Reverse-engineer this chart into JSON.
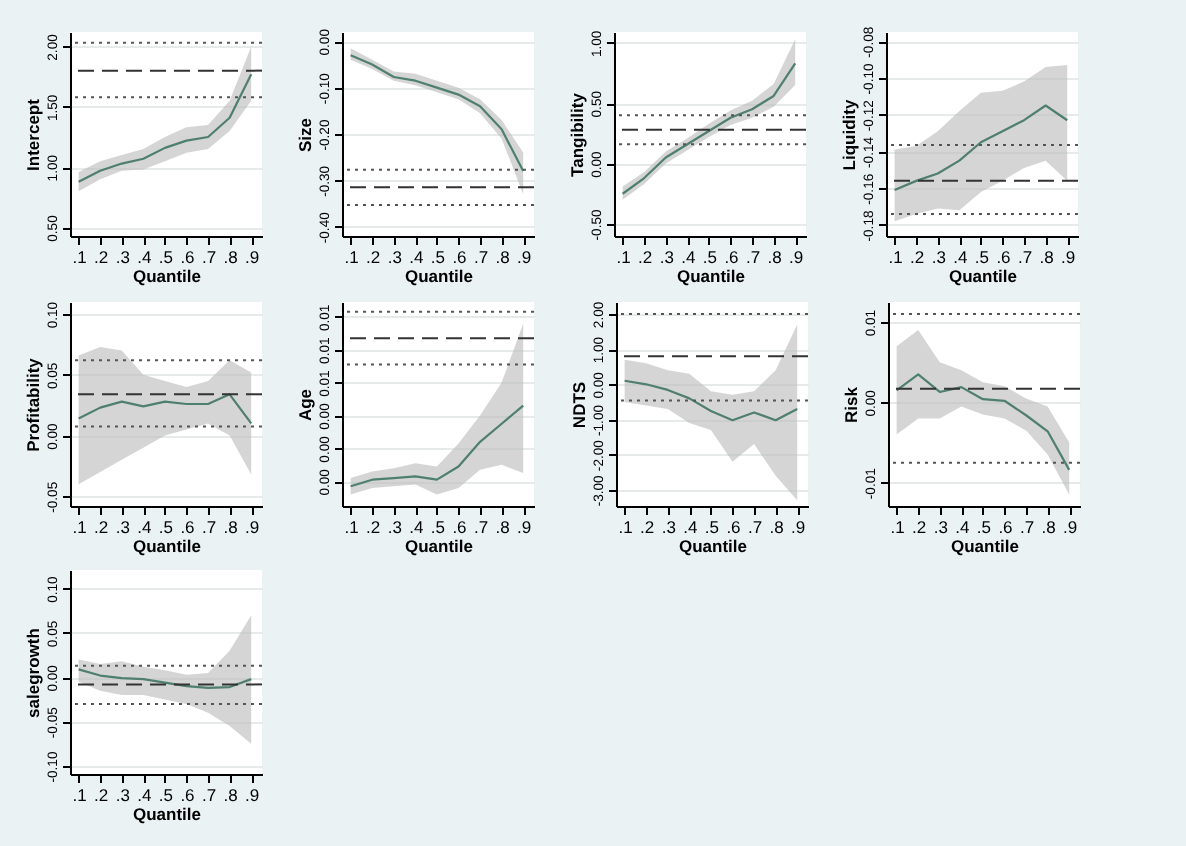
{
  "chart_data": [
    {
      "type": "line",
      "ylabel": "Intercept",
      "xlabel": "Quantile",
      "x": [
        0.1,
        0.2,
        0.3,
        0.4,
        0.5,
        0.6,
        0.7,
        0.8,
        0.9
      ],
      "xlim": [
        0.06,
        0.95
      ],
      "xticks": [
        {
          "value": 0.1,
          "label": ".1"
        },
        {
          "value": 0.2,
          "label": ".2"
        },
        {
          "value": 0.3,
          "label": ".3"
        },
        {
          "value": 0.4,
          "label": ".4"
        },
        {
          "value": 0.5,
          "label": ".5"
        },
        {
          "value": 0.6,
          "label": ".6"
        },
        {
          "value": 0.7,
          "label": ".7"
        },
        {
          "value": 0.8,
          "label": ".8"
        },
        {
          "value": 0.9,
          "label": ".9"
        }
      ],
      "ylim": [
        0.43,
        2.12
      ],
      "yticks": [
        {
          "value": 0.5,
          "label": "0.50"
        },
        {
          "value": 1,
          "label": "1.00"
        },
        {
          "value": 1.5,
          "label": "1.50"
        },
        {
          "value": 2,
          "label": "2.00"
        }
      ],
      "grid": "y",
      "series": [
        {
          "color": "#4f7f6e",
          "values": [
            0.88,
            0.97,
            1.03,
            1.07,
            1.16,
            1.22,
            1.25,
            1.41,
            1.77
          ],
          "lower": [
            0.8,
            0.9,
            0.97,
            0.98,
            1.05,
            1.12,
            1.15,
            1.3,
            1.55
          ],
          "upper": [
            0.96,
            1.05,
            1.1,
            1.15,
            1.25,
            1.33,
            1.35,
            1.55,
            2.0
          ]
        }
      ],
      "ref_lines": [
        {
          "axis": "y",
          "value": 2.03,
          "line_style": "dotted",
          "color": "#555555"
        },
        {
          "axis": "y",
          "value": 1.8,
          "line_style": "dashed",
          "color": "#333333"
        },
        {
          "axis": "y",
          "value": 1.58,
          "line_style": "dotted",
          "color": "#555555"
        }
      ]
    },
    {
      "type": "line",
      "ylabel": "Size",
      "xlabel": "Quantile",
      "x": [
        0.1,
        0.2,
        0.3,
        0.4,
        0.5,
        0.6,
        0.7,
        0.8,
        0.9
      ],
      "xlim": [
        0.06,
        0.95
      ],
      "xticks": [
        {
          "value": 0.1,
          "label": ".1"
        },
        {
          "value": 0.2,
          "label": ".2"
        },
        {
          "value": 0.3,
          "label": ".3"
        },
        {
          "value": 0.4,
          "label": ".4"
        },
        {
          "value": 0.5,
          "label": ".5"
        },
        {
          "value": 0.6,
          "label": ".6"
        },
        {
          "value": 0.7,
          "label": ".7"
        },
        {
          "value": 0.8,
          "label": ".8"
        },
        {
          "value": 0.9,
          "label": ".9"
        }
      ],
      "ylim": [
        -0.42,
        0.02
      ],
      "yticks": [
        {
          "value": -0.4,
          "label": "-0.40"
        },
        {
          "value": -0.3,
          "label": "-0.30"
        },
        {
          "value": -0.2,
          "label": "-0.20"
        },
        {
          "value": -0.1,
          "label": "-0.10"
        },
        {
          "value": 0,
          "label": "0.00"
        }
      ],
      "grid": "y",
      "series": [
        {
          "color": "#4f7f6e",
          "values": [
            -0.03,
            -0.05,
            -0.077,
            -0.085,
            -0.1,
            -0.115,
            -0.14,
            -0.19,
            -0.28
          ],
          "lower": [
            -0.04,
            -0.06,
            -0.085,
            -0.095,
            -0.11,
            -0.125,
            -0.155,
            -0.21,
            -0.33
          ],
          "upper": [
            -0.015,
            -0.04,
            -0.065,
            -0.07,
            -0.085,
            -0.1,
            -0.125,
            -0.17,
            -0.24
          ]
        }
      ],
      "ref_lines": [
        {
          "axis": "y",
          "value": -0.277,
          "line_style": "dotted",
          "color": "#555555"
        },
        {
          "axis": "y",
          "value": -0.315,
          "line_style": "dashed",
          "color": "#333333"
        },
        {
          "axis": "y",
          "value": -0.353,
          "line_style": "dotted",
          "color": "#555555"
        }
      ]
    },
    {
      "type": "line",
      "ylabel": "Tangibility",
      "xlabel": "Quantile",
      "x": [
        0.1,
        0.2,
        0.3,
        0.4,
        0.5,
        0.6,
        0.7,
        0.8,
        0.9
      ],
      "xlim": [
        0.06,
        0.95
      ],
      "xticks": [
        {
          "value": 0.1,
          "label": ".1"
        },
        {
          "value": 0.2,
          "label": ".2"
        },
        {
          "value": 0.3,
          "label": ".3"
        },
        {
          "value": 0.4,
          "label": ".4"
        },
        {
          "value": 0.5,
          "label": ".5"
        },
        {
          "value": 0.6,
          "label": ".6"
        },
        {
          "value": 0.7,
          "label": ".7"
        },
        {
          "value": 0.8,
          "label": ".8"
        },
        {
          "value": 0.9,
          "label": ".9"
        }
      ],
      "ylim": [
        -0.6,
        1.09
      ],
      "yticks": [
        {
          "value": -0.5,
          "label": "-0.50"
        },
        {
          "value": 0,
          "label": "0.00"
        },
        {
          "value": 0.5,
          "label": "0.50"
        },
        {
          "value": 1,
          "label": "1.00"
        }
      ],
      "grid": "y",
      "series": [
        {
          "color": "#4f7f6e",
          "values": [
            -0.25,
            -0.12,
            0.05,
            0.16,
            0.27,
            0.38,
            0.45,
            0.56,
            0.83
          ],
          "lower": [
            -0.3,
            -0.17,
            0.0,
            0.11,
            0.22,
            0.32,
            0.38,
            0.47,
            0.65
          ],
          "upper": [
            -0.19,
            -0.07,
            0.1,
            0.21,
            0.33,
            0.44,
            0.52,
            0.66,
            1.03
          ]
        }
      ],
      "ref_lines": [
        {
          "axis": "y",
          "value": 0.4,
          "line_style": "dotted",
          "color": "#555555"
        },
        {
          "axis": "y",
          "value": 0.28,
          "line_style": "dashed",
          "color": "#333333"
        },
        {
          "axis": "y",
          "value": 0.16,
          "line_style": "dotted",
          "color": "#555555"
        }
      ]
    },
    {
      "type": "line",
      "ylabel": "Liquidity",
      "xlabel": "Quantile",
      "x": [
        0.1,
        0.2,
        0.3,
        0.4,
        0.5,
        0.6,
        0.7,
        0.8,
        0.9
      ],
      "xlim": [
        0.06,
        0.95
      ],
      "xticks": [
        {
          "value": 0.1,
          "label": ".1"
        },
        {
          "value": 0.2,
          "label": ".2"
        },
        {
          "value": 0.3,
          "label": ".3"
        },
        {
          "value": 0.4,
          "label": ".4"
        },
        {
          "value": 0.5,
          "label": ".5"
        },
        {
          "value": 0.6,
          "label": ".6"
        },
        {
          "value": 0.7,
          "label": ".7"
        },
        {
          "value": 0.8,
          "label": ".8"
        },
        {
          "value": 0.9,
          "label": ".9"
        }
      ],
      "ylim": [
        -0.186,
        -0.075
      ],
      "yticks": [
        {
          "value": -0.18,
          "label": "-0.18"
        },
        {
          "value": -0.16,
          "label": "-0.16"
        },
        {
          "value": -0.14,
          "label": "-0.14"
        },
        {
          "value": -0.12,
          "label": "-0.12"
        },
        {
          "value": -0.1,
          "label": "-0.10"
        },
        {
          "value": -0.08,
          "label": "-0.08"
        }
      ],
      "grid": "y",
      "series": [
        {
          "color": "#4f7f6e",
          "values": [
            -0.161,
            -0.156,
            -0.152,
            -0.145,
            -0.135,
            -0.129,
            -0.123,
            -0.115,
            -0.123
          ],
          "lower": [
            -0.178,
            -0.174,
            -0.171,
            -0.172,
            -0.162,
            -0.156,
            -0.149,
            -0.145,
            -0.156
          ],
          "upper": [
            -0.139,
            -0.137,
            -0.129,
            -0.118,
            -0.108,
            -0.107,
            -0.102,
            -0.094,
            -0.093
          ]
        }
      ],
      "ref_lines": [
        {
          "axis": "y",
          "value": -0.1365,
          "line_style": "dotted",
          "color": "#555555"
        },
        {
          "axis": "y",
          "value": -0.156,
          "line_style": "dashed",
          "color": "#333333"
        },
        {
          "axis": "y",
          "value": -0.174,
          "line_style": "dotted",
          "color": "#555555"
        }
      ]
    },
    {
      "type": "line",
      "ylabel": "Profitability",
      "xlabel": "Quantile",
      "x": [
        0.1,
        0.2,
        0.3,
        0.4,
        0.5,
        0.6,
        0.7,
        0.8,
        0.9
      ],
      "xlim": [
        0.06,
        0.95
      ],
      "xticks": [
        {
          "value": 0.1,
          "label": ".1"
        },
        {
          "value": 0.2,
          "label": ".2"
        },
        {
          "value": 0.3,
          "label": ".3"
        },
        {
          "value": 0.4,
          "label": ".4"
        },
        {
          "value": 0.5,
          "label": ".5"
        },
        {
          "value": 0.6,
          "label": ".6"
        },
        {
          "value": 0.7,
          "label": ".7"
        },
        {
          "value": 0.8,
          "label": ".8"
        },
        {
          "value": 0.9,
          "label": ".9"
        }
      ],
      "ylim": [
        -0.058,
        0.11
      ],
      "yticks": [
        -0.05,
        {
          "value": 0,
          "label": "0.00"
        },
        0.05,
        {
          "value": 0.1,
          "label": "0.10"
        }
      ],
      "grid": "y",
      "series": [
        {
          "color": "#4f7f6e",
          "values": [
            0.014,
            0.023,
            0.028,
            0.024,
            0.028,
            0.026,
            0.026,
            0.034,
            0.01
          ],
          "lower": [
            -0.04,
            -0.03,
            -0.02,
            -0.01,
            0.0,
            0.005,
            0.01,
            0.0,
            -0.032
          ],
          "upper": [
            0.066,
            0.073,
            0.07,
            0.05,
            0.045,
            0.04,
            0.045,
            0.062,
            0.052
          ]
        }
      ],
      "ref_lines": [
        {
          "axis": "y",
          "value": 0.062,
          "line_style": "dotted",
          "color": "#555555"
        },
        {
          "axis": "y",
          "value": 0.034,
          "line_style": "dashed",
          "color": "#333333"
        },
        {
          "axis": "y",
          "value": 0.0075,
          "line_style": "dotted",
          "color": "#555555"
        }
      ]
    },
    {
      "type": "line",
      "ylabel": "Age",
      "xlabel": "Quantile",
      "x": [
        0.1,
        0.2,
        0.3,
        0.4,
        0.5,
        0.6,
        0.7,
        0.8,
        0.9
      ],
      "xlim": [
        0.06,
        0.95
      ],
      "xticks": [
        {
          "value": 0.1,
          "label": ".1"
        },
        {
          "value": 0.2,
          "label": ".2"
        },
        {
          "value": 0.3,
          "label": ".3"
        },
        {
          "value": 0.4,
          "label": ".4"
        },
        {
          "value": 0.5,
          "label": ".5"
        },
        {
          "value": 0.6,
          "label": ".6"
        },
        {
          "value": 0.7,
          "label": ".7"
        },
        {
          "value": 0.8,
          "label": ".8"
        },
        {
          "value": 0.9,
          "label": ".9"
        }
      ],
      "ylim": [
        -0.0015,
        0.0109
      ],
      "yticks": [
        {
          "value": 0,
          "label": "0.00"
        },
        {
          "value": 0.002,
          "label": "0.00"
        },
        {
          "value": 0.004,
          "label": "0.00"
        },
        {
          "value": 0.006,
          "label": "0.01"
        },
        {
          "value": 0.008,
          "label": "0.01"
        },
        {
          "value": 0.01,
          "label": "0.01"
        }
      ],
      "grid": "y",
      "series": [
        {
          "color": "#4f7f6e",
          "values": [
            -0.0003,
            0.0001,
            0.0002,
            0.0003,
            0.0001,
            0.0009,
            0.0024,
            0.0035,
            0.0046
          ],
          "lower": [
            -0.0008,
            -0.0004,
            -0.0003,
            -0.0002,
            -0.0008,
            -0.0004,
            0.0007,
            0.001,
            0.0005
          ],
          "upper": [
            0.0002,
            0.0006,
            0.0008,
            0.0011,
            0.0009,
            0.0023,
            0.004,
            0.006,
            0.0096
          ]
        }
      ],
      "ref_lines": [
        {
          "axis": "y",
          "value": 0.0103,
          "line_style": "dotted",
          "color": "#555555"
        },
        {
          "axis": "y",
          "value": 0.0087,
          "line_style": "dashed",
          "color": "#333333"
        },
        {
          "axis": "y",
          "value": 0.0071,
          "line_style": "dotted",
          "color": "#555555"
        }
      ]
    },
    {
      "type": "line",
      "ylabel": "NDTS",
      "xlabel": "Quantile",
      "x": [
        0.1,
        0.2,
        0.3,
        0.4,
        0.5,
        0.6,
        0.7,
        0.8,
        0.9
      ],
      "xlim": [
        0.06,
        0.95
      ],
      "xticks": [
        {
          "value": 0.1,
          "label": ".1"
        },
        {
          "value": 0.2,
          "label": ".2"
        },
        {
          "value": 0.3,
          "label": ".3"
        },
        {
          "value": 0.4,
          "label": ".4"
        },
        {
          "value": 0.5,
          "label": ".5"
        },
        {
          "value": 0.6,
          "label": ".6"
        },
        {
          "value": 0.7,
          "label": ".7"
        },
        {
          "value": 0.8,
          "label": ".8"
        },
        {
          "value": 0.9,
          "label": ".9"
        }
      ],
      "ylim": [
        -3.46,
        2.34
      ],
      "yticks": [
        {
          "value": -3,
          "label": "-3.00"
        },
        {
          "value": -2,
          "label": "-2.00"
        },
        {
          "value": -1,
          "label": "-1.00"
        },
        {
          "value": 0,
          "label": "0.00"
        },
        {
          "value": 1,
          "label": "1.00"
        },
        {
          "value": 2,
          "label": "2.00"
        }
      ],
      "grid": "y",
      "series": [
        {
          "color": "#4f7f6e",
          "values": [
            0.1,
            0.0,
            -0.16,
            -0.4,
            -0.76,
            -1.02,
            -0.8,
            -1.02,
            -0.7
          ],
          "lower": [
            -0.5,
            -0.6,
            -0.7,
            -1.1,
            -1.3,
            -2.2,
            -1.7,
            -2.6,
            -3.3
          ],
          "upper": [
            0.7,
            0.6,
            0.4,
            0.3,
            -0.2,
            -0.3,
            -0.2,
            0.4,
            1.7
          ]
        }
      ],
      "ref_lines": [
        {
          "axis": "y",
          "value": 2.0,
          "line_style": "dotted",
          "color": "#555555"
        },
        {
          "axis": "y",
          "value": 0.8,
          "line_style": "dashed",
          "color": "#333333"
        },
        {
          "axis": "y",
          "value": -0.46,
          "line_style": "dotted",
          "color": "#555555"
        }
      ]
    },
    {
      "type": "line",
      "ylabel": "Risk",
      "xlabel": "Quantile",
      "x": [
        0.1,
        0.2,
        0.3,
        0.4,
        0.5,
        0.6,
        0.7,
        0.8,
        0.9
      ],
      "xlim": [
        0.06,
        0.95
      ],
      "xticks": [
        {
          "value": 0.1,
          "label": ".1"
        },
        {
          "value": 0.2,
          "label": ".2"
        },
        {
          "value": 0.3,
          "label": ".3"
        },
        {
          "value": 0.4,
          "label": ".4"
        },
        {
          "value": 0.5,
          "label": ".5"
        },
        {
          "value": 0.6,
          "label": ".6"
        },
        {
          "value": 0.7,
          "label": ".7"
        },
        {
          "value": 0.8,
          "label": ".8"
        },
        {
          "value": 0.9,
          "label": ".9"
        }
      ],
      "ylim": [
        -0.0129,
        0.0125
      ],
      "yticks": [
        -0.01,
        {
          "value": 0,
          "label": "0.00"
        },
        0.01
      ],
      "grid": "y",
      "series": [
        {
          "color": "#4f7f6e",
          "values": [
            0.0015,
            0.0035,
            0.0013,
            0.0019,
            0.0004,
            0.0002,
            -0.0016,
            -0.0036,
            -0.0084
          ],
          "lower": [
            -0.004,
            -0.002,
            -0.002,
            -0.0005,
            -0.0015,
            -0.002,
            -0.0035,
            -0.0065,
            -0.0115
          ],
          "upper": [
            0.007,
            0.009,
            0.005,
            0.004,
            0.0025,
            0.002,
            0.0005,
            -0.0005,
            -0.005
          ]
        }
      ],
      "ref_lines": [
        {
          "axis": "y",
          "value": 0.011,
          "line_style": "dotted",
          "color": "#555555"
        },
        {
          "axis": "y",
          "value": 0.0017,
          "line_style": "dashed",
          "color": "#333333"
        },
        {
          "axis": "y",
          "value": -0.0075,
          "line_style": "dotted",
          "color": "#555555"
        }
      ]
    },
    {
      "type": "line",
      "ylabel": "salegrowth",
      "xlabel": "Quantile",
      "x": [
        0.1,
        0.2,
        0.3,
        0.4,
        0.5,
        0.6,
        0.7,
        0.8,
        0.9
      ],
      "xlim": [
        0.06,
        0.95
      ],
      "xticks": [
        {
          "value": 0.1,
          "label": ".1"
        },
        {
          "value": 0.2,
          "label": ".2"
        },
        {
          "value": 0.3,
          "label": ".3"
        },
        {
          "value": 0.4,
          "label": ".4"
        },
        {
          "value": 0.5,
          "label": ".5"
        },
        {
          "value": 0.6,
          "label": ".6"
        },
        {
          "value": 0.7,
          "label": ".7"
        },
        {
          "value": 0.8,
          "label": ".8"
        },
        {
          "value": 0.9,
          "label": ".9"
        }
      ],
      "ylim": [
        -0.109,
        0.121
      ],
      "yticks": [
        {
          "value": -0.1,
          "label": "-0.10"
        },
        -0.05,
        {
          "value": 0,
          "label": "0.00"
        },
        0.05,
        {
          "value": 0.1,
          "label": "0.10"
        }
      ],
      "grid": "y",
      "series": [
        {
          "color": "#4f7f6e",
          "values": [
            0.009,
            0.002,
            -0.001,
            -0.002,
            -0.006,
            -0.01,
            -0.012,
            -0.011,
            -0.002
          ],
          "lower": [
            -0.005,
            -0.015,
            -0.02,
            -0.02,
            -0.025,
            -0.03,
            -0.04,
            -0.055,
            -0.075
          ],
          "upper": [
            0.02,
            0.015,
            0.018,
            0.012,
            0.008,
            0.003,
            0.005,
            0.03,
            0.07
          ]
        }
      ],
      "ref_lines": [
        {
          "axis": "y",
          "value": 0.013,
          "line_style": "dotted",
          "color": "#555555"
        },
        {
          "axis": "y",
          "value": -0.008,
          "line_style": "dashed",
          "color": "#333333"
        },
        {
          "axis": "y",
          "value": -0.03,
          "line_style": "dotted",
          "color": "#555555"
        }
      ]
    }
  ]
}
